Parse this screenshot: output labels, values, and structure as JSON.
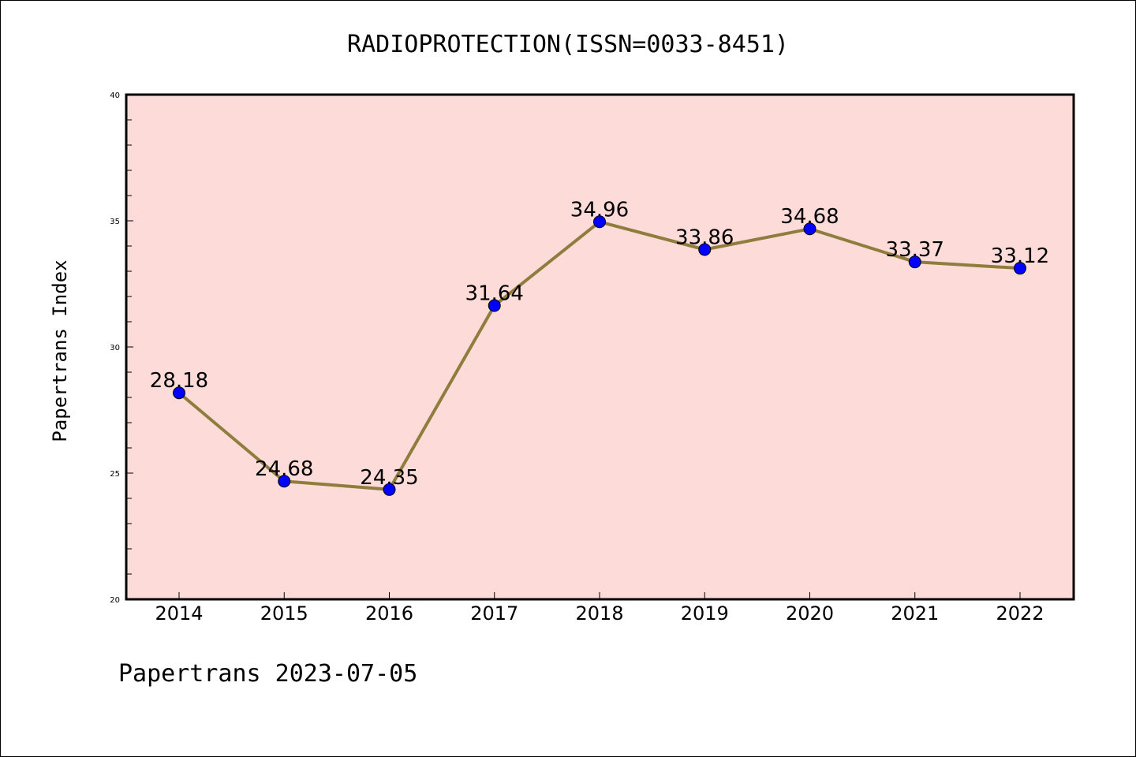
{
  "colors": {
    "plot_background": "#fddbd8",
    "line": "#8f7d3e",
    "marker": "#0000ff",
    "axis": "#000000"
  },
  "footer": {
    "text": "Papertrans 2023-07-05"
  },
  "chart_data": {
    "type": "line",
    "title": "RADIOPROTECTION(ISSN=0033-8451)",
    "xlabel": "",
    "ylabel": "Papertrans Index",
    "categories": [
      "2014",
      "2015",
      "2016",
      "2017",
      "2018",
      "2019",
      "2020",
      "2021",
      "2022"
    ],
    "series": [
      {
        "values": [
          28.18,
          24.68,
          24.35,
          31.64,
          34.96,
          33.86,
          34.68,
          33.37,
          33.12
        ]
      }
    ],
    "data_labels": [
      "28.18",
      "24.68",
      "24.35",
      "31.64",
      "34.96",
      "33.86",
      "34.68",
      "33.37",
      "33.12"
    ],
    "ylim": [
      20,
      40
    ],
    "yticks": [
      20,
      25,
      30,
      35,
      40
    ],
    "yticks_minor_step": 1,
    "grid": false,
    "legend": "none"
  }
}
